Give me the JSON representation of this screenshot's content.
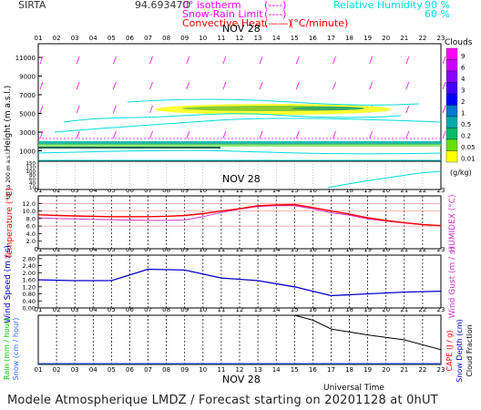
{
  "header": {
    "station": "SIRTA",
    "coords": "94.69347O",
    "legend_isotherm": "0° isotherm",
    "legend_snow": "Snow-Rain Limit",
    "legend_conv": "Convective Heat.",
    "legend_conv_unit": "(°C/minute)",
    "legend_isotherm_sym": "(----)",
    "legend_snow_sym": "(----)",
    "legend_conv_sym": "(——)",
    "rh_label": "Relative Humidity",
    "rh_90": "90 %",
    "rh_60": "60 %",
    "colors": {
      "isotherm": "#ff00ff",
      "snow": "#ff00ff",
      "conv": "#ff0000",
      "rh": "#00e0e0"
    }
  },
  "hours": [
    "01",
    "02",
    "03",
    "04",
    "05",
    "06",
    "07",
    "08",
    "09",
    "10",
    "11",
    "12",
    "13",
    "14",
    "15",
    "16",
    "17",
    "18",
    "19",
    "20",
    "21",
    "22",
    "23"
  ],
  "date_label": "NOV 28",
  "clouds_panel": {
    "ylabel": "Height  (m a.s.l.)",
    "ylabel_low": "Up to 200 m a.s.l.",
    "yticks_high": [
      "11000",
      "9000",
      "7000",
      "5000",
      "3000",
      "1000"
    ],
    "yticks_low": [
      "150",
      "130",
      "100",
      "80",
      "60",
      "40",
      "10"
    ],
    "colorbar_title": "Clouds",
    "colorbar_labels": [
      "9",
      "6",
      "4",
      "3",
      "2",
      "1",
      "0.5",
      "0.2",
      "0.05",
      "0.01"
    ],
    "colorbar_unit": "(g/kg)",
    "colorbar_colors": [
      "#ff00ff",
      "#cc00ff",
      "#8800ff",
      "#4400ff",
      "#0000ff",
      "#0077cc",
      "#00aaaa",
      "#00bb66",
      "#66dd00",
      "#ffff00"
    ]
  },
  "temp_panel": {
    "ylabel": "Temperature (°C)",
    "rlabel": "HUMIDEX (°C)",
    "yticks": [
      "12.0",
      "10.0",
      "8.0",
      "6.0",
      "4.0",
      "2.0"
    ],
    "color_temp": "#ff0000",
    "color_humidex": "#cc33cc"
  },
  "wind_panel": {
    "ylabel": "Wind Speed (m / s)",
    "rlabel": "Wind Gust (m / s)",
    "yticks": [
      "2.80",
      "2.40",
      "2.00",
      "1.60",
      "1.20",
      "0.80",
      "0.40",
      "0.00"
    ],
    "color": "#0000cc"
  },
  "rain_panel": {
    "ylabel_rain": "Rain (mm / hour)",
    "ylabel_snow": "Snow (cm / hour)",
    "rlabel_cape": "CAPE (J / g)",
    "rlabel_snowdepth": "Snow Depth (cm)",
    "rlabel_cloudfrac": "Cloud Fraction",
    "time_label": "Universal Time",
    "colors": {
      "rain": "#00cc00",
      "snow": "#3366ff",
      "cape": "#ff0000",
      "snowdepth": "#0000cc",
      "cloudfrac": "#000000"
    }
  },
  "footer": "Modele Atmospherique LMDZ / Forecast starting on 20201128 at 0hUT",
  "chart_data": [
    {
      "type": "line",
      "name": "temperature",
      "x": [
        1,
        2,
        3,
        4,
        5,
        6,
        7,
        8,
        9,
        10,
        11,
        12,
        13,
        14,
        15,
        16,
        17,
        18,
        19,
        20,
        21,
        22,
        23
      ],
      "series": [
        {
          "name": "Temperature",
          "values": [
            9.0,
            8.8,
            8.7,
            8.6,
            8.5,
            8.5,
            8.5,
            8.6,
            8.8,
            9.3,
            10.0,
            10.6,
            11.4,
            11.6,
            11.7,
            10.9,
            10.0,
            9.2,
            8.2,
            7.5,
            6.9,
            6.4,
            6.1
          ]
        },
        {
          "name": "Humidex",
          "values": [
            8.2,
            8.0,
            7.9,
            7.8,
            7.7,
            7.6,
            7.5,
            7.5,
            7.6,
            8.5,
            9.6,
            10.5,
            11.2,
            11.4,
            11.4,
            10.6,
            9.5,
            8.9,
            7.9,
            7.3,
            6.8,
            6.4,
            6.1
          ]
        }
      ],
      "ylim": [
        0,
        14
      ]
    },
    {
      "type": "line",
      "name": "wind",
      "x": [
        1,
        3,
        5,
        7,
        9,
        11,
        13,
        15,
        17,
        19,
        21,
        23
      ],
      "series": [
        {
          "name": "Wind Speed",
          "values": [
            1.6,
            1.55,
            1.55,
            2.2,
            2.15,
            1.7,
            1.55,
            1.2,
            0.7,
            0.8,
            0.9,
            0.95
          ]
        }
      ],
      "ylim": [
        0,
        3.0
      ]
    },
    {
      "type": "line",
      "name": "cloud_fraction",
      "x": [
        1,
        3,
        5,
        7,
        9,
        11,
        13,
        15,
        16,
        17,
        19,
        21,
        23
      ],
      "series": [
        {
          "name": "Cloud Fraction",
          "values": [
            1.0,
            1.0,
            1.0,
            1.0,
            1.0,
            1.0,
            1.0,
            1.0,
            0.9,
            0.72,
            0.6,
            0.5,
            0.3
          ]
        }
      ],
      "ylim": [
        0,
        1
      ]
    }
  ]
}
